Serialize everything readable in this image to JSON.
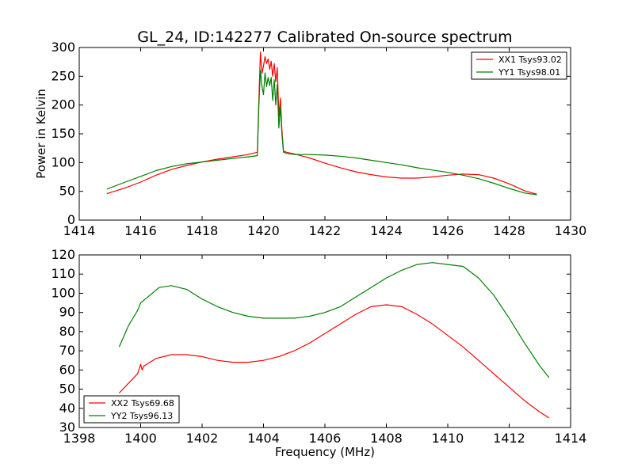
{
  "chart_data": [
    {
      "type": "line",
      "title": "GL_24, ID:142277 Calibrated On-source spectrum",
      "xlabel": "",
      "ylabel": "Power in Kelvin",
      "xlim": [
        1414,
        1430
      ],
      "ylim": [
        0,
        300
      ],
      "xticks": [
        "1414",
        "1416",
        "1418",
        "1420",
        "1422",
        "1424",
        "1426",
        "1428",
        "1430"
      ],
      "yticks": [
        "0",
        "50",
        "100",
        "150",
        "200",
        "250",
        "300"
      ],
      "legend_position": "top-right",
      "series": [
        {
          "name": "XX1 Tsys93.02",
          "color": "#ff0000",
          "x": [
            1414.9,
            1415.5,
            1416.0,
            1416.5,
            1417.0,
            1417.5,
            1418.0,
            1418.5,
            1419.0,
            1419.5,
            1419.8,
            1419.85,
            1419.9,
            1419.95,
            1420.0,
            1420.05,
            1420.1,
            1420.15,
            1420.2,
            1420.25,
            1420.3,
            1420.35,
            1420.4,
            1420.45,
            1420.5,
            1420.55,
            1420.6,
            1420.65,
            1420.75,
            1421.0,
            1421.5,
            1422.0,
            1422.5,
            1423.0,
            1423.5,
            1424.0,
            1424.5,
            1425.0,
            1425.5,
            1426.0,
            1426.5,
            1427.0,
            1427.5,
            1428.0,
            1428.5,
            1428.9
          ],
          "y": [
            46,
            56,
            66,
            78,
            88,
            95,
            101,
            106,
            110,
            114,
            118,
            210,
            292,
            255,
            268,
            284,
            272,
            280,
            262,
            276,
            250,
            272,
            240,
            265,
            180,
            212,
            158,
            120,
            118,
            115,
            108,
            99,
            91,
            84,
            79,
            75,
            73,
            73,
            75,
            78,
            80,
            79,
            73,
            63,
            51,
            45
          ]
        },
        {
          "name": "YY1 Tsys98.01",
          "color": "#008000",
          "x": [
            1414.9,
            1415.5,
            1416.0,
            1416.5,
            1417.0,
            1417.5,
            1418.0,
            1418.5,
            1419.0,
            1419.5,
            1419.8,
            1419.85,
            1419.9,
            1419.95,
            1420.0,
            1420.05,
            1420.1,
            1420.15,
            1420.2,
            1420.25,
            1420.3,
            1420.35,
            1420.4,
            1420.45,
            1420.5,
            1420.55,
            1420.6,
            1420.65,
            1420.75,
            1421.0,
            1421.5,
            1422.0,
            1422.5,
            1423.0,
            1423.5,
            1424.0,
            1424.5,
            1425.0,
            1425.5,
            1426.0,
            1426.5,
            1427.0,
            1427.5,
            1428.0,
            1428.5,
            1428.9
          ],
          "y": [
            54,
            66,
            76,
            86,
            93,
            98,
            101,
            104,
            107,
            110,
            112,
            200,
            260,
            232,
            218,
            256,
            232,
            248,
            234,
            248,
            208,
            244,
            200,
            236,
            160,
            198,
            150,
            118,
            116,
            114,
            114,
            113,
            111,
            108,
            104,
            100,
            96,
            91,
            87,
            83,
            78,
            72,
            64,
            55,
            47,
            44
          ]
        }
      ]
    },
    {
      "type": "line",
      "title": "",
      "xlabel": "Frequency (MHz)",
      "ylabel": "",
      "xlim": [
        1398,
        1414
      ],
      "ylim": [
        30,
        120
      ],
      "xticks": [
        "1398",
        "1400",
        "1402",
        "1404",
        "1406",
        "1408",
        "1410",
        "1412",
        "1414"
      ],
      "yticks": [
        "30",
        "40",
        "50",
        "60",
        "70",
        "80",
        "90",
        "100",
        "110",
        "120"
      ],
      "legend_position": "bottom-left",
      "series": [
        {
          "name": "XX2 Tsys69.68",
          "color": "#ff0000",
          "x": [
            1399.3,
            1399.6,
            1399.9,
            1400.0,
            1400.05,
            1400.1,
            1400.5,
            1401.0,
            1401.5,
            1402.0,
            1402.5,
            1403.0,
            1403.5,
            1404.0,
            1404.5,
            1405.0,
            1405.5,
            1406.0,
            1406.5,
            1407.0,
            1407.5,
            1408.0,
            1408.5,
            1409.0,
            1409.5,
            1410.0,
            1410.5,
            1411.0,
            1411.5,
            1412.0,
            1412.5,
            1413.0,
            1413.3
          ],
          "y": [
            48,
            53,
            58,
            63,
            60,
            62,
            66,
            68,
            68,
            67,
            65,
            64,
            64,
            65,
            67,
            70,
            74,
            79,
            84,
            89,
            93,
            94,
            93,
            89,
            84,
            78,
            72,
            65,
            58,
            51,
            44,
            38,
            35
          ]
        },
        {
          "name": "YY2 Tsys96.13",
          "color": "#008000",
          "x": [
            1399.3,
            1399.6,
            1399.9,
            1400.0,
            1400.3,
            1400.6,
            1401.0,
            1401.5,
            1402.0,
            1402.5,
            1403.0,
            1403.5,
            1404.0,
            1404.5,
            1405.0,
            1405.5,
            1406.0,
            1406.5,
            1407.0,
            1407.5,
            1408.0,
            1408.5,
            1409.0,
            1409.5,
            1410.0,
            1410.5,
            1411.0,
            1411.5,
            1412.0,
            1412.5,
            1413.0,
            1413.3
          ],
          "y": [
            72,
            83,
            91,
            95,
            99,
            103,
            104,
            102,
            97,
            93,
            90,
            88,
            87,
            87,
            87,
            88,
            90,
            93,
            98,
            103,
            108,
            112,
            115,
            116,
            115,
            114,
            108,
            99,
            87,
            74,
            62,
            56
          ]
        }
      ]
    }
  ]
}
